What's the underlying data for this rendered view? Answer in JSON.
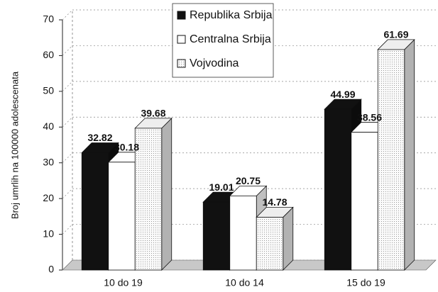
{
  "chart_data": {
    "type": "bar3d",
    "y_label": "Broj umrlih na 100000 adolescenata",
    "categories": [
      "10 do 19",
      "10 do 14",
      "15 do 19"
    ],
    "series": [
      {
        "name": "Republika Srbija",
        "color": "#111111",
        "values": [
          32.82,
          19.01,
          44.99
        ]
      },
      {
        "name": "Centralna Srbija",
        "color": "#ffffff",
        "values": [
          30.18,
          20.75,
          38.56
        ]
      },
      {
        "name": "Vojvodina",
        "color": "#eeeeee",
        "values": [
          39.68,
          14.78,
          61.69
        ]
      }
    ],
    "ylim": [
      0,
      70
    ],
    "yticks": [
      0,
      10,
      20,
      30,
      40,
      50,
      60,
      70
    ],
    "grid": true,
    "legend": "top"
  }
}
